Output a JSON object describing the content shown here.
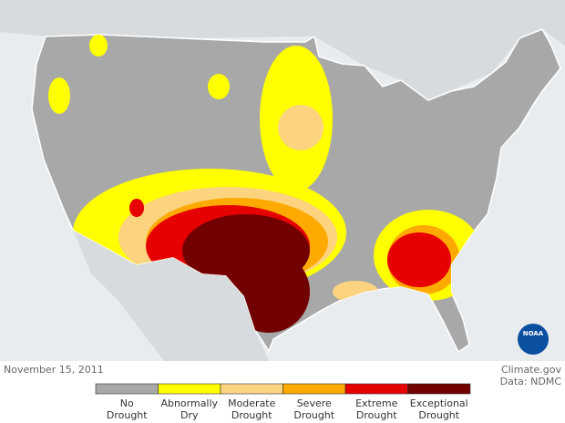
{
  "map": {
    "date": "November 15, 2011",
    "credit": "Climate.gov",
    "source": "Data: NDMC",
    "logo_text": "NOAA"
  },
  "legend": [
    {
      "label": [
        "No",
        "Drought"
      ],
      "color": "#a8a8a8"
    },
    {
      "label": [
        "Abnormally",
        "Dry"
      ],
      "color": "#ffff00"
    },
    {
      "label": [
        "Moderate",
        "Drought"
      ],
      "color": "#fcd37f"
    },
    {
      "label": [
        "Severe",
        "Drought"
      ],
      "color": "#ffaa00"
    },
    {
      "label": [
        "Extreme",
        "Drought"
      ],
      "color": "#e60000"
    },
    {
      "label": [
        "Exceptional",
        "Drought"
      ],
      "color": "#730000"
    }
  ]
}
